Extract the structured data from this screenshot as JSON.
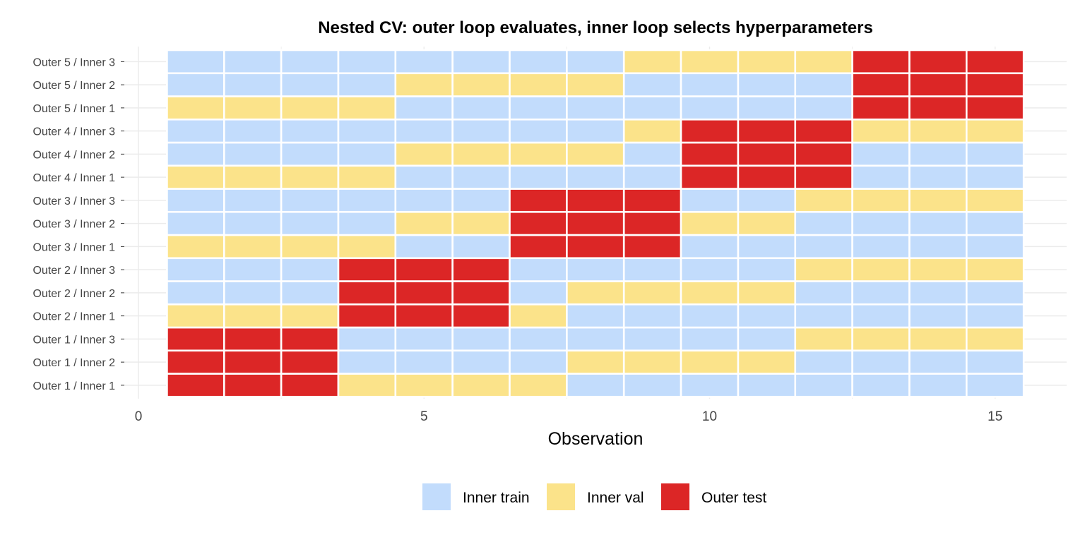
{
  "chart_data": {
    "type": "heatmap",
    "title": "Nested CV: outer loop evaluates, inner loop selects hyperparameters",
    "xlabel": "Observation",
    "ylabel": "",
    "xlim": [
      0,
      15.5
    ],
    "xticks": [
      0,
      5,
      10,
      15
    ],
    "grid": true,
    "legend_position": "bottom",
    "x": [
      1,
      2,
      3,
      4,
      5,
      6,
      7,
      8,
      9,
      10,
      11,
      12,
      13,
      14,
      15
    ],
    "rows": [
      {
        "label": "Outer 1 / Inner 1",
        "values": [
          "Outer test",
          "Outer test",
          "Outer test",
          "Inner val",
          "Inner val",
          "Inner val",
          "Inner val",
          "Inner train",
          "Inner train",
          "Inner train",
          "Inner train",
          "Inner train",
          "Inner train",
          "Inner train",
          "Inner train"
        ]
      },
      {
        "label": "Outer 1 / Inner 2",
        "values": [
          "Outer test",
          "Outer test",
          "Outer test",
          "Inner train",
          "Inner train",
          "Inner train",
          "Inner train",
          "Inner val",
          "Inner val",
          "Inner val",
          "Inner val",
          "Inner train",
          "Inner train",
          "Inner train",
          "Inner train"
        ]
      },
      {
        "label": "Outer 1 / Inner 3",
        "values": [
          "Outer test",
          "Outer test",
          "Outer test",
          "Inner train",
          "Inner train",
          "Inner train",
          "Inner train",
          "Inner train",
          "Inner train",
          "Inner train",
          "Inner train",
          "Inner val",
          "Inner val",
          "Inner val",
          "Inner val"
        ]
      },
      {
        "label": "Outer 2 / Inner 1",
        "values": [
          "Inner val",
          "Inner val",
          "Inner val",
          "Outer test",
          "Outer test",
          "Outer test",
          "Inner val",
          "Inner train",
          "Inner train",
          "Inner train",
          "Inner train",
          "Inner train",
          "Inner train",
          "Inner train",
          "Inner train"
        ]
      },
      {
        "label": "Outer 2 / Inner 2",
        "values": [
          "Inner train",
          "Inner train",
          "Inner train",
          "Outer test",
          "Outer test",
          "Outer test",
          "Inner train",
          "Inner val",
          "Inner val",
          "Inner val",
          "Inner val",
          "Inner train",
          "Inner train",
          "Inner train",
          "Inner train"
        ]
      },
      {
        "label": "Outer 2 / Inner 3",
        "values": [
          "Inner train",
          "Inner train",
          "Inner train",
          "Outer test",
          "Outer test",
          "Outer test",
          "Inner train",
          "Inner train",
          "Inner train",
          "Inner train",
          "Inner train",
          "Inner val",
          "Inner val",
          "Inner val",
          "Inner val"
        ]
      },
      {
        "label": "Outer 3 / Inner 1",
        "values": [
          "Inner val",
          "Inner val",
          "Inner val",
          "Inner val",
          "Inner train",
          "Inner train",
          "Outer test",
          "Outer test",
          "Outer test",
          "Inner train",
          "Inner train",
          "Inner train",
          "Inner train",
          "Inner train",
          "Inner train"
        ]
      },
      {
        "label": "Outer 3 / Inner 2",
        "values": [
          "Inner train",
          "Inner train",
          "Inner train",
          "Inner train",
          "Inner val",
          "Inner val",
          "Outer test",
          "Outer test",
          "Outer test",
          "Inner val",
          "Inner val",
          "Inner train",
          "Inner train",
          "Inner train",
          "Inner train"
        ]
      },
      {
        "label": "Outer 3 / Inner 3",
        "values": [
          "Inner train",
          "Inner train",
          "Inner train",
          "Inner train",
          "Inner train",
          "Inner train",
          "Outer test",
          "Outer test",
          "Outer test",
          "Inner train",
          "Inner train",
          "Inner val",
          "Inner val",
          "Inner val",
          "Inner val"
        ]
      },
      {
        "label": "Outer 4 / Inner 1",
        "values": [
          "Inner val",
          "Inner val",
          "Inner val",
          "Inner val",
          "Inner train",
          "Inner train",
          "Inner train",
          "Inner train",
          "Inner train",
          "Outer test",
          "Outer test",
          "Outer test",
          "Inner train",
          "Inner train",
          "Inner train"
        ]
      },
      {
        "label": "Outer 4 / Inner 2",
        "values": [
          "Inner train",
          "Inner train",
          "Inner train",
          "Inner train",
          "Inner val",
          "Inner val",
          "Inner val",
          "Inner val",
          "Inner train",
          "Outer test",
          "Outer test",
          "Outer test",
          "Inner train",
          "Inner train",
          "Inner train"
        ]
      },
      {
        "label": "Outer 4 / Inner 3",
        "values": [
          "Inner train",
          "Inner train",
          "Inner train",
          "Inner train",
          "Inner train",
          "Inner train",
          "Inner train",
          "Inner train",
          "Inner val",
          "Outer test",
          "Outer test",
          "Outer test",
          "Inner val",
          "Inner val",
          "Inner val"
        ]
      },
      {
        "label": "Outer 5 / Inner 1",
        "values": [
          "Inner val",
          "Inner val",
          "Inner val",
          "Inner val",
          "Inner train",
          "Inner train",
          "Inner train",
          "Inner train",
          "Inner train",
          "Inner train",
          "Inner train",
          "Inner train",
          "Outer test",
          "Outer test",
          "Outer test"
        ]
      },
      {
        "label": "Outer 5 / Inner 2",
        "values": [
          "Inner train",
          "Inner train",
          "Inner train",
          "Inner train",
          "Inner val",
          "Inner val",
          "Inner val",
          "Inner val",
          "Inner train",
          "Inner train",
          "Inner train",
          "Inner train",
          "Outer test",
          "Outer test",
          "Outer test"
        ]
      },
      {
        "label": "Outer 5 / Inner 3",
        "values": [
          "Inner train",
          "Inner train",
          "Inner train",
          "Inner train",
          "Inner train",
          "Inner train",
          "Inner train",
          "Inner train",
          "Inner val",
          "Inner val",
          "Inner val",
          "Inner val",
          "Outer test",
          "Outer test",
          "Outer test"
        ]
      }
    ],
    "legend": [
      {
        "name": "Inner train",
        "color": "#c2dcfc"
      },
      {
        "name": "Inner val",
        "color": "#fbe38a"
      },
      {
        "name": "Outer test",
        "color": "#dc2626"
      }
    ]
  }
}
